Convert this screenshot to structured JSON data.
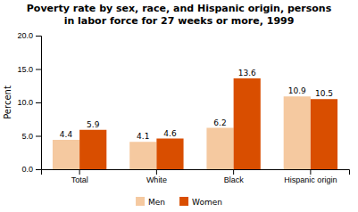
{
  "chart_data": {
    "type": "bar",
    "title": "Poverty rate by sex, race, and Hispanic origin, persons",
    "subtitle": "in labor force for 27 weeks or more, 1999",
    "categories": [
      "Total",
      "White",
      "Black",
      "Hispanic origin"
    ],
    "series": [
      {
        "name": "Men",
        "color": "#F5C9A0",
        "values": [
          4.4,
          4.1,
          6.2,
          10.9
        ]
      },
      {
        "name": "Women",
        "color": "#D94E00",
        "values": [
          5.9,
          4.6,
          13.6,
          10.5
        ]
      }
    ],
    "ylabel": "Percent",
    "ylim": [
      0,
      20.0
    ],
    "yticks": [
      {
        "value": 0.0,
        "label": "0.0"
      },
      {
        "value": 5.0,
        "label": "5.0"
      },
      {
        "value": 10.0,
        "label": "10.0"
      },
      {
        "value": 15.0,
        "label": "15.0"
      },
      {
        "value": 20.0,
        "label": "20.0"
      }
    ],
    "data_labels": true,
    "legend": "bottom",
    "grid": false
  }
}
